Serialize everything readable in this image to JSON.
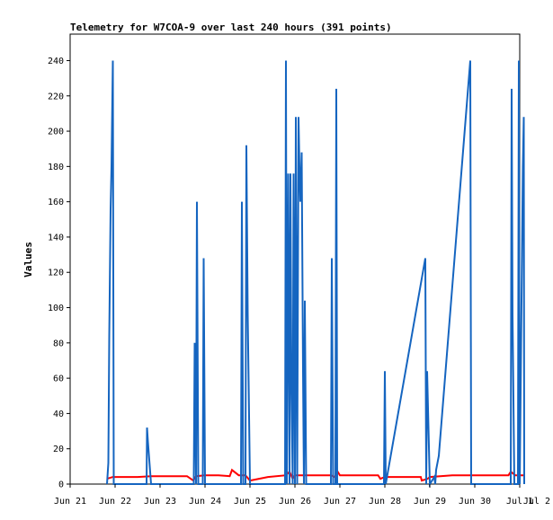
{
  "chart_data": {
    "type": "line",
    "title": "Telemetry for W7COA-9 over last 240 hours (391 points)",
    "xlabel": "",
    "ylabel": "Values",
    "xlim": [
      21.0,
      31.0
    ],
    "ylim": [
      0,
      255
    ],
    "grid": false,
    "x_tick_labels": [
      "Jun 21",
      "Jun 22",
      "Jun 23",
      "Jun 24",
      "Jun 25",
      "Jun 26",
      "Jun 27",
      "Jun 28",
      "Jun 29",
      "Jun 30",
      "Jul 1",
      "Jul 2"
    ],
    "x_tick_values": [
      21,
      22,
      23,
      24,
      25,
      26,
      27,
      28,
      29,
      30,
      31,
      32
    ],
    "y_ticks": [
      0,
      20,
      40,
      60,
      80,
      100,
      120,
      140,
      160,
      180,
      200,
      220,
      240
    ],
    "series": [
      {
        "color": "#ff0000",
        "x": [
          21.82,
          21.95,
          22.2,
          22.5,
          22.8,
          23.2,
          23.6,
          23.74,
          23.8,
          24.0,
          24.3,
          24.55,
          24.6,
          24.75,
          24.9,
          25.0,
          25.4,
          25.8,
          25.88,
          25.95,
          26.0,
          26.4,
          26.8,
          26.88,
          26.95,
          27.0,
          27.5,
          27.85,
          27.9,
          28.0,
          28.3,
          28.8,
          28.82,
          28.95,
          29.0,
          29.5,
          30.0,
          30.5,
          30.75,
          30.8,
          30.9,
          31.0,
          31.08
        ],
        "y": [
          3,
          4,
          4,
          4,
          4.5,
          4.5,
          4.5,
          2,
          4.5,
          5,
          5,
          4.5,
          8,
          5,
          5,
          2,
          4,
          5,
          7,
          3,
          5,
          5,
          5,
          4,
          7,
          5,
          5,
          5,
          3,
          4,
          4,
          4,
          2,
          3,
          4,
          5,
          5,
          5,
          5,
          7,
          5,
          5,
          5
        ]
      },
      {
        "color": "#1565c0",
        "x": [
          21.82,
          21.85,
          21.87,
          21.9,
          21.92,
          21.95,
          21.97,
          22.0,
          22.7,
          22.71,
          22.73,
          22.8,
          23.75,
          23.77,
          23.8,
          23.82,
          23.85,
          23.95,
          23.97,
          24.0,
          24.8,
          24.82,
          24.85,
          24.9,
          24.92,
          24.95,
          25.0,
          25.78,
          25.8,
          25.82,
          25.85,
          25.88,
          25.9,
          25.92,
          25.95,
          25.97,
          26.0,
          26.02,
          26.05,
          26.08,
          26.1,
          26.12,
          26.15,
          26.18,
          26.2,
          26.22,
          26.25,
          26.3,
          26.8,
          26.82,
          26.85,
          26.9,
          26.92,
          26.94,
          27.0,
          27.98,
          28.0,
          28.02,
          28.9,
          28.92,
          28.94,
          29.0,
          29.1,
          29.12,
          29.14,
          29.2,
          29.9,
          29.92,
          29.94,
          30.8,
          30.82,
          30.84,
          30.88,
          30.96,
          30.98,
          31.0,
          31.05,
          31.07,
          31.09,
          31.1
        ],
        "y": [
          0,
          12,
          84,
          156,
          180,
          240,
          0,
          0,
          0,
          32,
          24,
          0,
          0,
          80,
          0,
          160,
          0,
          0,
          128,
          0,
          0,
          160,
          0,
          0,
          192,
          96,
          0,
          0,
          240,
          0,
          176,
          0,
          176,
          64,
          0,
          176,
          0,
          208,
          0,
          208,
          180,
          160,
          188,
          64,
          0,
          104,
          0,
          0,
          0,
          128,
          0,
          0,
          224,
          0,
          0,
          0,
          64,
          0,
          128,
          0,
          64,
          0,
          4,
          0,
          8,
          16,
          240,
          0,
          0,
          0,
          224,
          96,
          0,
          0,
          240,
          0,
          130,
          180,
          208,
          0
        ]
      }
    ]
  }
}
